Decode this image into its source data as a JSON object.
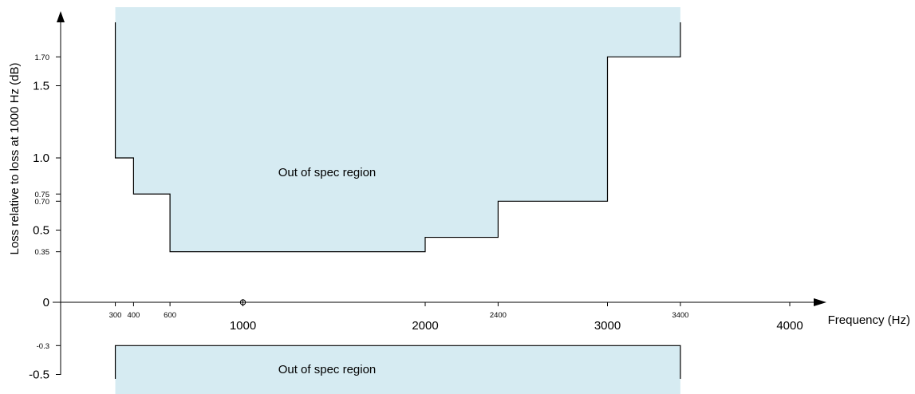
{
  "chart_data": {
    "type": "line",
    "title": "",
    "xlabel": "Frequency (Hz)",
    "ylabel": "Loss relative to loss at 1000 Hz (dB)",
    "xlim": [
      0,
      4000
    ],
    "ylim": [
      -0.5,
      1.9
    ],
    "grid": false,
    "x_ticks": [
      {
        "value": 300,
        "label": "300",
        "size": "small"
      },
      {
        "value": 400,
        "label": "400",
        "size": "small"
      },
      {
        "value": 600,
        "label": "600",
        "size": "small"
      },
      {
        "value": 1000,
        "label": "1000",
        "size": "large"
      },
      {
        "value": 2000,
        "label": "2000",
        "size": "large"
      },
      {
        "value": 2400,
        "label": "2400",
        "size": "small"
      },
      {
        "value": 3000,
        "label": "3000",
        "size": "large"
      },
      {
        "value": 3400,
        "label": "3400",
        "size": "small"
      },
      {
        "value": 4000,
        "label": "4000",
        "size": "large"
      }
    ],
    "y_ticks": [
      {
        "value": 1.7,
        "label": "1.70",
        "size": "small"
      },
      {
        "value": 1.5,
        "label": "1.5",
        "size": "large"
      },
      {
        "value": 1.0,
        "label": "1.0",
        "size": "large"
      },
      {
        "value": 0.75,
        "label": "0.75",
        "size": "small"
      },
      {
        "value": 0.7,
        "label": "0.70",
        "size": "small"
      },
      {
        "value": 0.5,
        "label": "0.5",
        "size": "large"
      },
      {
        "value": 0.35,
        "label": "0.35",
        "size": "small"
      },
      {
        "value": 0,
        "label": "0",
        "size": "large"
      },
      {
        "value": -0.3,
        "label": "-0.3",
        "size": "small"
      },
      {
        "value": -0.5,
        "label": "-0.5",
        "size": "large"
      }
    ],
    "reference_point": {
      "x": 1000,
      "y": 0
    },
    "upper_limit": {
      "x": [
        300,
        300,
        400,
        400,
        600,
        600,
        2000,
        2000,
        2400,
        2400,
        3000,
        3000,
        3400,
        3400
      ],
      "y": [
        1.9,
        1.0,
        1.0,
        0.75,
        0.75,
        0.35,
        0.35,
        0.45,
        0.45,
        0.7,
        0.7,
        1.7,
        1.7,
        1.9
      ]
    },
    "lower_limit": {
      "x": [
        300,
        300,
        3400,
        3400
      ],
      "y": [
        -0.5,
        -0.3,
        -0.3,
        -0.5
      ]
    },
    "regions": [
      {
        "label": "Out of spec region",
        "position": "upper"
      },
      {
        "label": "Out of spec region",
        "position": "lower"
      }
    ],
    "colors": {
      "region_fill": "#d6ebf2",
      "line": "#000000"
    }
  }
}
